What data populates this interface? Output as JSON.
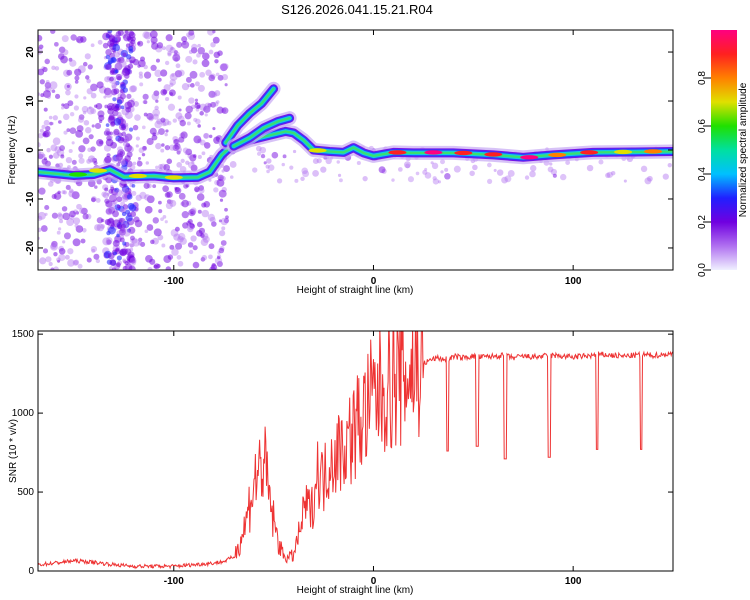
{
  "title": "S126.2026.041.15.21.R04",
  "chart_data": [
    {
      "type": "heatmap",
      "name": "spectrogram",
      "xlabel": "Height of straight line (km)",
      "ylabel": "Frequency (Hz)",
      "xlim": [
        -168,
        150
      ],
      "ylim": [
        -24.5,
        24.5
      ],
      "xticks": [
        -100,
        0,
        100
      ],
      "xtick_labels": [
        "-100",
        "0",
        "100"
      ],
      "yticks": [
        -20,
        -10,
        0,
        10,
        20
      ],
      "ytick_labels": [
        "-20",
        "-10",
        "0",
        "10",
        "20"
      ],
      "colorbar": {
        "label": "Normalized spectral amplitude",
        "range": [
          0.0,
          1.0
        ],
        "ticks": [
          0.0,
          0.2,
          0.4,
          0.6,
          0.8
        ],
        "tick_labels": [
          "0.0",
          "0.2",
          "0.4",
          "0.6",
          "0.8"
        ],
        "colors": [
          "#f0f0ff",
          "#b070f0",
          "#7000e0",
          "#2020ff",
          "#00c0ff",
          "#00e0a0",
          "#20e000",
          "#e0e000",
          "#ff8000",
          "#ff2020",
          "#ff0080"
        ]
      },
      "trace_segments": [
        {
          "name": "lower-trace",
          "points": [
            [
              -168,
              -4.5
            ],
            [
              -150,
              -5.2
            ],
            [
              -140,
              -5.0
            ],
            [
              -132,
              -4.0
            ],
            [
              -125,
              -5.5
            ],
            [
              -110,
              -5.3
            ],
            [
              -100,
              -5.7
            ],
            [
              -88,
              -5.6
            ],
            [
              -82,
              -4.5
            ],
            [
              -76,
              -1.0
            ],
            [
              -72,
              0.5
            ],
            [
              -62,
              2.0
            ],
            [
              -52,
              3.0
            ],
            [
              -44,
              3.8
            ],
            [
              -40,
              3.5
            ],
            [
              -35,
              2.0
            ],
            [
              -30,
              0.0
            ],
            [
              -22,
              -0.3
            ],
            [
              -15,
              -0.5
            ],
            [
              -10,
              0.5
            ],
            [
              -5,
              -0.6
            ],
            [
              0,
              -1.2
            ],
            [
              10,
              -0.5
            ],
            [
              20,
              -0.6
            ],
            [
              40,
              -0.6
            ],
            [
              60,
              -1.0
            ],
            [
              75,
              -1.5
            ],
            [
              90,
              -1.0
            ],
            [
              110,
              -0.5
            ],
            [
              130,
              -0.4
            ],
            [
              150,
              -0.3
            ]
          ]
        },
        {
          "name": "upper-branch",
          "points": [
            [
              -74,
              1.5
            ],
            [
              -68,
              5.0
            ],
            [
              -62,
              7.5
            ],
            [
              -56,
              9.5
            ],
            [
              -50,
              12.5
            ]
          ]
        },
        {
          "name": "mid-branch",
          "points": [
            [
              -70,
              0.8
            ],
            [
              -62,
              2.5
            ],
            [
              -55,
              4.5
            ],
            [
              -48,
              5.8
            ],
            [
              -42,
              6.5
            ]
          ]
        }
      ]
    },
    {
      "type": "line",
      "name": "snr",
      "xlabel": "Height of straight line (km)",
      "ylabel": "SNR (10 * v/v)",
      "xlim": [
        -168,
        150
      ],
      "ylim": [
        0,
        1520
      ],
      "xticks": [
        -100,
        0,
        100
      ],
      "xtick_labels": [
        "-100",
        "0",
        "100"
      ],
      "yticks": [
        0,
        500,
        1000,
        1500
      ],
      "ytick_labels": [
        "0",
        "500",
        "1000",
        "1500"
      ],
      "color": "#ee3333",
      "x": [
        -168,
        -160,
        -150,
        -140,
        -130,
        -120,
        -110,
        -100,
        -95,
        -90,
        -85,
        -80,
        -75,
        -70,
        -67,
        -64,
        -61,
        -58,
        -55,
        -52,
        -49,
        -46,
        -43,
        -40,
        -37,
        -34,
        -31,
        -28,
        -25,
        -22,
        -19,
        -16,
        -13,
        -10,
        -7,
        -4,
        -1,
        2,
        5,
        8,
        11,
        14,
        17,
        20,
        23,
        26,
        29,
        32,
        35,
        38,
        41,
        44,
        47,
        50,
        55,
        60,
        65,
        70,
        75,
        80,
        85,
        90,
        95,
        100,
        105,
        110,
        115,
        120,
        125,
        130,
        135,
        140,
        145,
        150
      ],
      "y": [
        40,
        50,
        65,
        55,
        40,
        30,
        30,
        30,
        35,
        40,
        45,
        50,
        60,
        90,
        180,
        300,
        500,
        620,
        700,
        450,
        250,
        120,
        80,
        100,
        250,
        420,
        380,
        650,
        560,
        720,
        740,
        780,
        820,
        880,
        950,
        1000,
        1080,
        1120,
        1160,
        1190,
        1200,
        1230,
        1250,
        1280,
        1300,
        1320,
        1340,
        1350,
        1340,
        1345,
        1360,
        1350,
        1355,
        1360,
        1355,
        1360,
        1365,
        1350,
        1360,
        1355,
        1360,
        1365,
        1360,
        1355,
        1360,
        1365,
        1370,
        1365,
        1360,
        1365,
        1370,
        1365,
        1370,
        1375
      ],
      "dips": [
        [
          37,
          760
        ],
        [
          52,
          790
        ],
        [
          66,
          710
        ],
        [
          88,
          720
        ],
        [
          112,
          770
        ],
        [
          134,
          770
        ]
      ]
    }
  ]
}
